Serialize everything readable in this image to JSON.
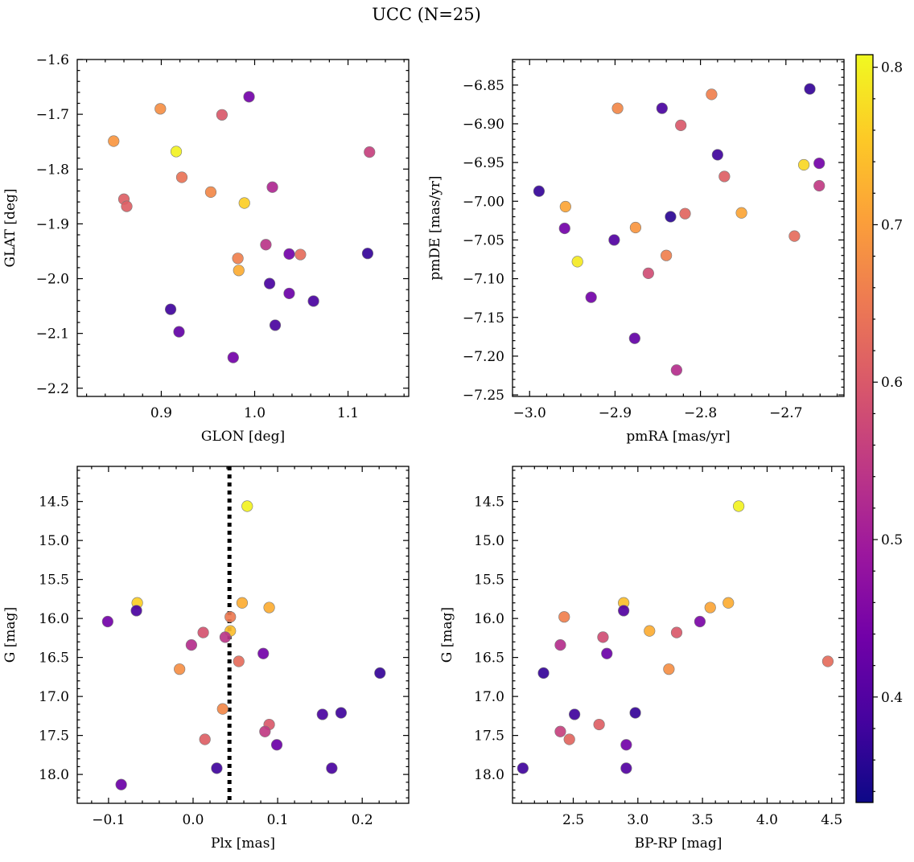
{
  "figure": {
    "title": "UCC (N=25)"
  },
  "colorbar": {
    "range": [
      0.333,
      0.808
    ],
    "ticks": [
      0.4,
      0.5,
      0.6,
      0.7,
      0.8
    ],
    "tick_labels": [
      "0.4",
      "0.5",
      "0.6",
      "0.7",
      "0.8"
    ],
    "colormap": "plasma",
    "stops": [
      "#0d0887",
      "#46039f",
      "#7201a8",
      "#9c179e",
      "#bd3786",
      "#d8576b",
      "#ed7953",
      "#fb9f3a",
      "#fdca26",
      "#f0f921"
    ]
  },
  "chart_data": [
    {
      "type": "scatter",
      "xlabel": "GLON [deg]",
      "ylabel": "GLAT [deg]",
      "xlim": [
        0.81,
        1.165
      ],
      "ylim": [
        -2.215,
        -1.6
      ],
      "xticks": [
        0.9,
        1.0,
        1.1
      ],
      "xtick_labels": [
        "0.9",
        "1.0",
        "1.1"
      ],
      "yticks": [
        -2.2,
        -2.1,
        -2.0,
        -1.9,
        -1.8,
        -1.7,
        -1.6
      ],
      "ytick_labels": [
        "−2.2",
        "−2.1",
        "−2.0",
        "−1.9",
        "−1.8",
        "−1.7",
        "−1.6"
      ],
      "points": [
        {
          "x": 0.849,
          "y": -1.749,
          "c": 0.69
        },
        {
          "x": 0.899,
          "y": -1.69,
          "c": 0.68
        },
        {
          "x": 0.916,
          "y": -1.768,
          "c": 0.8
        },
        {
          "x": 0.922,
          "y": -1.815,
          "c": 0.64
        },
        {
          "x": 0.86,
          "y": -1.855,
          "c": 0.61
        },
        {
          "x": 0.863,
          "y": -1.868,
          "c": 0.61
        },
        {
          "x": 0.953,
          "y": -1.842,
          "c": 0.67
        },
        {
          "x": 0.965,
          "y": -1.701,
          "c": 0.6
        },
        {
          "x": 0.994,
          "y": -1.668,
          "c": 0.44
        },
        {
          "x": 0.989,
          "y": -1.862,
          "c": 0.76
        },
        {
          "x": 1.019,
          "y": -1.833,
          "c": 0.52
        },
        {
          "x": 1.123,
          "y": -1.769,
          "c": 0.56
        },
        {
          "x": 0.982,
          "y": -1.963,
          "c": 0.66
        },
        {
          "x": 0.983,
          "y": -1.985,
          "c": 0.72
        },
        {
          "x": 1.012,
          "y": -1.938,
          "c": 0.54
        },
        {
          "x": 1.037,
          "y": -1.955,
          "c": 0.44
        },
        {
          "x": 1.049,
          "y": -1.956,
          "c": 0.63
        },
        {
          "x": 1.121,
          "y": -1.954,
          "c": 0.37
        },
        {
          "x": 1.016,
          "y": -2.009,
          "c": 0.39
        },
        {
          "x": 1.037,
          "y": -2.027,
          "c": 0.43
        },
        {
          "x": 1.063,
          "y": -2.041,
          "c": 0.39
        },
        {
          "x": 0.91,
          "y": -2.056,
          "c": 0.38
        },
        {
          "x": 0.919,
          "y": -2.097,
          "c": 0.42
        },
        {
          "x": 1.022,
          "y": -2.085,
          "c": 0.39
        },
        {
          "x": 0.977,
          "y": -2.144,
          "c": 0.44
        }
      ]
    },
    {
      "type": "scatter",
      "xlabel": "pmRA [mas/yr]",
      "ylabel": "pmDE [mas/yr]",
      "xlim": [
        -3.02,
        -2.632
      ],
      "ylim": [
        -7.252,
        -6.817
      ],
      "xticks": [
        -3.0,
        -2.9,
        -2.8,
        -2.7
      ],
      "xtick_labels": [
        "−3.0",
        "−2.9",
        "−2.8",
        "−2.7"
      ],
      "yticks": [
        -7.25,
        -7.2,
        -7.15,
        -7.1,
        -7.05,
        -7.0,
        -6.95,
        -6.9,
        -6.85
      ],
      "ytick_labels": [
        "−7.25",
        "−7.20",
        "−7.15",
        "−7.10",
        "−7.05",
        "−7.00",
        "−6.95",
        "−6.90",
        "−6.85"
      ],
      "points": [
        {
          "x": -2.672,
          "y": -6.855,
          "c": 0.37
        },
        {
          "x": -2.787,
          "y": -6.862,
          "c": 0.66
        },
        {
          "x": -2.897,
          "y": -6.88,
          "c": 0.67
        },
        {
          "x": -2.845,
          "y": -6.88,
          "c": 0.39
        },
        {
          "x": -2.823,
          "y": -6.902,
          "c": 0.6
        },
        {
          "x": -2.78,
          "y": -6.94,
          "c": 0.38
        },
        {
          "x": -2.772,
          "y": -6.968,
          "c": 0.61
        },
        {
          "x": -2.679,
          "y": -6.953,
          "c": 0.77
        },
        {
          "x": -2.661,
          "y": -6.951,
          "c": 0.44
        },
        {
          "x": -2.661,
          "y": -6.98,
          "c": 0.55
        },
        {
          "x": -2.989,
          "y": -6.987,
          "c": 0.37
        },
        {
          "x": -2.958,
          "y": -7.007,
          "c": 0.71
        },
        {
          "x": -2.835,
          "y": -7.02,
          "c": 0.36
        },
        {
          "x": -2.818,
          "y": -7.016,
          "c": 0.62
        },
        {
          "x": -2.752,
          "y": -7.015,
          "c": 0.71
        },
        {
          "x": -2.959,
          "y": -7.035,
          "c": 0.44
        },
        {
          "x": -2.876,
          "y": -7.034,
          "c": 0.69
        },
        {
          "x": -2.901,
          "y": -7.05,
          "c": 0.4
        },
        {
          "x": -2.69,
          "y": -7.045,
          "c": 0.63
        },
        {
          "x": -2.944,
          "y": -7.078,
          "c": 0.79
        },
        {
          "x": -2.84,
          "y": -7.07,
          "c": 0.66
        },
        {
          "x": -2.861,
          "y": -7.093,
          "c": 0.58
        },
        {
          "x": -2.928,
          "y": -7.124,
          "c": 0.44
        },
        {
          "x": -2.877,
          "y": -7.177,
          "c": 0.42
        },
        {
          "x": -2.828,
          "y": -7.218,
          "c": 0.53
        }
      ]
    },
    {
      "type": "scatter",
      "xlabel": "Plx [mas]",
      "ylabel": "G [mag]",
      "xlim": [
        -0.137,
        0.255
      ],
      "ylim": [
        18.37,
        14.05
      ],
      "y_inverted": true,
      "xticks": [
        -0.1,
        0.0,
        0.1,
        0.2
      ],
      "xtick_labels": [
        "−0.1",
        "0.0",
        "0.1",
        "0.2"
      ],
      "yticks": [
        14.5,
        15.0,
        15.5,
        16.0,
        16.5,
        17.0,
        17.5,
        18.0
      ],
      "ytick_labels": [
        "14.5",
        "15.0",
        "15.5",
        "16.0",
        "16.5",
        "17.0",
        "17.5",
        "18.0"
      ],
      "vline": 0.043,
      "points": [
        {
          "x": 0.064,
          "y": 14.56,
          "c": 0.8
        },
        {
          "x": -0.066,
          "y": 15.8,
          "c": 0.76
        },
        {
          "x": 0.058,
          "y": 15.8,
          "c": 0.72
        },
        {
          "x": 0.09,
          "y": 15.86,
          "c": 0.72
        },
        {
          "x": -0.067,
          "y": 15.9,
          "c": 0.39
        },
        {
          "x": 0.044,
          "y": 15.98,
          "c": 0.65
        },
        {
          "x": -0.101,
          "y": 16.04,
          "c": 0.44
        },
        {
          "x": 0.012,
          "y": 16.18,
          "c": 0.59
        },
        {
          "x": 0.044,
          "y": 16.16,
          "c": 0.74
        },
        {
          "x": 0.038,
          "y": 16.24,
          "c": 0.54
        },
        {
          "x": -0.002,
          "y": 16.34,
          "c": 0.53
        },
        {
          "x": 0.083,
          "y": 16.45,
          "c": 0.44
        },
        {
          "x": 0.054,
          "y": 16.55,
          "c": 0.63
        },
        {
          "x": -0.016,
          "y": 16.65,
          "c": 0.68
        },
        {
          "x": 0.221,
          "y": 16.7,
          "c": 0.37
        },
        {
          "x": 0.035,
          "y": 17.16,
          "c": 0.67
        },
        {
          "x": 0.175,
          "y": 17.21,
          "c": 0.38
        },
        {
          "x": 0.153,
          "y": 17.23,
          "c": 0.39
        },
        {
          "x": 0.09,
          "y": 17.36,
          "c": 0.6
        },
        {
          "x": 0.085,
          "y": 17.45,
          "c": 0.55
        },
        {
          "x": 0.014,
          "y": 17.55,
          "c": 0.61
        },
        {
          "x": 0.099,
          "y": 17.62,
          "c": 0.43
        },
        {
          "x": 0.028,
          "y": 17.92,
          "c": 0.38
        },
        {
          "x": 0.164,
          "y": 17.92,
          "c": 0.39
        },
        {
          "x": -0.085,
          "y": 18.13,
          "c": 0.43
        }
      ]
    },
    {
      "type": "scatter",
      "xlabel": "BP-RP [mag]",
      "ylabel": "G [mag]",
      "xlim": [
        2.03,
        4.595
      ],
      "ylim": [
        18.37,
        14.05
      ],
      "y_inverted": true,
      "xticks": [
        2.5,
        3.0,
        3.5,
        4.0,
        4.5
      ],
      "xtick_labels": [
        "2.5",
        "3.0",
        "3.5",
        "4.0",
        "4.5"
      ],
      "yticks": [
        14.5,
        15.0,
        15.5,
        16.0,
        16.5,
        17.0,
        17.5,
        18.0
      ],
      "ytick_labels": [
        "14.5",
        "15.0",
        "15.5",
        "16.0",
        "16.5",
        "17.0",
        "17.5",
        "18.0"
      ],
      "points": [
        {
          "x": 3.78,
          "y": 14.56,
          "c": 0.8
        },
        {
          "x": 2.89,
          "y": 15.8,
          "c": 0.74
        },
        {
          "x": 3.7,
          "y": 15.8,
          "c": 0.72
        },
        {
          "x": 3.56,
          "y": 15.86,
          "c": 0.71
        },
        {
          "x": 2.89,
          "y": 15.9,
          "c": 0.4
        },
        {
          "x": 2.43,
          "y": 15.98,
          "c": 0.66
        },
        {
          "x": 3.48,
          "y": 16.04,
          "c": 0.45
        },
        {
          "x": 3.09,
          "y": 16.16,
          "c": 0.72
        },
        {
          "x": 3.3,
          "y": 16.18,
          "c": 0.6
        },
        {
          "x": 2.73,
          "y": 16.24,
          "c": 0.58
        },
        {
          "x": 2.4,
          "y": 16.34,
          "c": 0.53
        },
        {
          "x": 2.76,
          "y": 16.45,
          "c": 0.43
        },
        {
          "x": 4.47,
          "y": 16.55,
          "c": 0.63
        },
        {
          "x": 3.24,
          "y": 16.65,
          "c": 0.68
        },
        {
          "x": 2.27,
          "y": 16.7,
          "c": 0.37
        },
        {
          "x": 2.98,
          "y": 17.21,
          "c": 0.37
        },
        {
          "x": 2.51,
          "y": 17.23,
          "c": 0.38
        },
        {
          "x": 2.7,
          "y": 17.36,
          "c": 0.61
        },
        {
          "x": 2.4,
          "y": 17.45,
          "c": 0.56
        },
        {
          "x": 2.47,
          "y": 17.55,
          "c": 0.62
        },
        {
          "x": 2.91,
          "y": 17.62,
          "c": 0.44
        },
        {
          "x": 2.11,
          "y": 17.92,
          "c": 0.38
        },
        {
          "x": 2.91,
          "y": 17.92,
          "c": 0.4
        }
      ]
    }
  ]
}
